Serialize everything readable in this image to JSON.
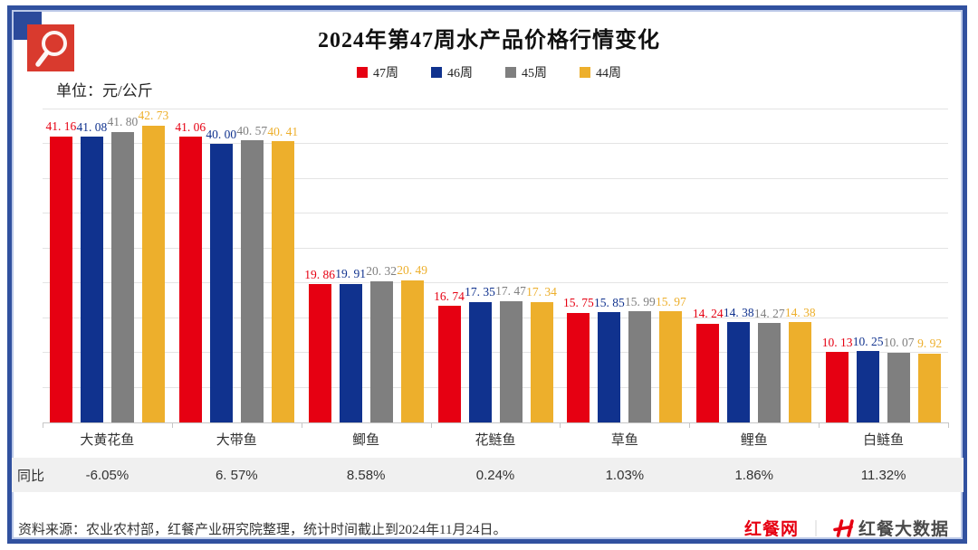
{
  "title": "2024年第47周水产品价格行情变化",
  "unit_label": "单位：元/公斤",
  "colors": {
    "frame_blue": "#31519f",
    "corner_blue": "#2b4a9b",
    "icon_red": "#d93a2e",
    "accent_red": "#e60012",
    "series_red": "#e60012",
    "series_blue": "#10328e",
    "series_gray": "#7f7f7f",
    "series_yellow": "#edaf2c"
  },
  "icons": {
    "magnifier": "magnifier-icon",
    "brand_h": "hongcan-h-icon"
  },
  "chart_data": {
    "type": "bar",
    "title": "2024年第47周水产品价格行情变化",
    "ylabel": "元/公斤",
    "xlabel": "",
    "ylim": [
      0,
      45
    ],
    "grid_step": 5,
    "grid": true,
    "legend_position": "top",
    "categories": [
      "大黄花鱼",
      "大带鱼",
      "鲫鱼",
      "花鲢鱼",
      "草鱼",
      "鲤鱼",
      "白鲢鱼"
    ],
    "series": [
      {
        "name": "47周",
        "color": "#e60012",
        "values": [
          41.16,
          41.06,
          19.86,
          16.74,
          15.75,
          14.24,
          10.13
        ],
        "labels": [
          "41. 16",
          "41. 06",
          "19. 86",
          "16. 74",
          "15. 75",
          "14. 24",
          "10. 13"
        ]
      },
      {
        "name": "46周",
        "color": "#10328e",
        "values": [
          41.08,
          40.0,
          19.91,
          17.35,
          15.85,
          14.38,
          10.25
        ],
        "labels": [
          "41. 08",
          "40. 00",
          "19. 91",
          "17. 35",
          "15. 85",
          "14. 38",
          "10. 25"
        ]
      },
      {
        "name": "45周",
        "color": "#7f7f7f",
        "values": [
          41.8,
          40.57,
          20.32,
          17.47,
          15.99,
          14.27,
          10.07
        ],
        "labels": [
          "41. 80",
          "40. 57",
          "20. 32",
          "17. 47",
          "15. 99",
          "14. 27",
          "10. 07"
        ]
      },
      {
        "name": "44周",
        "color": "#edaf2c",
        "values": [
          42.73,
          40.41,
          20.49,
          17.34,
          15.97,
          14.38,
          9.92
        ],
        "labels": [
          "42. 73",
          "40. 41",
          "20. 49",
          "17. 34",
          "15. 97",
          "14. 38",
          "9. 92"
        ]
      }
    ]
  },
  "yoy": {
    "label": "同比",
    "values": [
      "-6.05%",
      "6. 57%",
      "8.58%",
      "0.24%",
      "1.03%",
      "1.86%",
      "11.32%"
    ]
  },
  "footer": {
    "source": "资料来源：农业农村部，红餐产业研究院整理，统计时间截止到2024年11月24日。",
    "brand_left": "红餐网",
    "brand_sep": "｜",
    "brand_right": "红餐大数据"
  }
}
